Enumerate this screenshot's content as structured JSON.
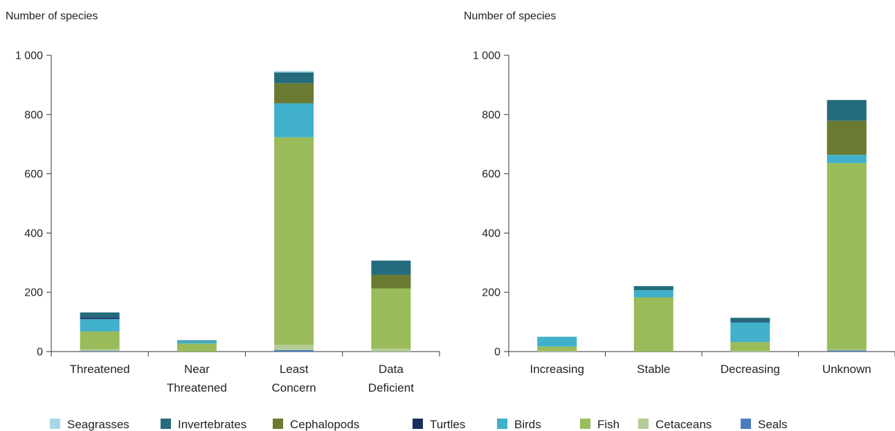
{
  "legend": [
    {
      "name": "Seagrasses",
      "color": "#a8d8e6"
    },
    {
      "name": "Invertebrates",
      "color": "#246b7d"
    },
    {
      "name": "Cephalopods",
      "color": "#6a7a30"
    },
    {
      "name": "Turtles",
      "color": "#1b2f5e"
    },
    {
      "name": "Birds",
      "color": "#41b0cb"
    },
    {
      "name": "Fish",
      "color": "#9abb59"
    },
    {
      "name": "Cetaceans",
      "color": "#b3cc98"
    },
    {
      "name": "Seals",
      "color": "#4a7cbf"
    }
  ],
  "chart_data": [
    {
      "type": "bar",
      "stacked": true,
      "title": "",
      "ylabel": "Number of species",
      "ylim": [
        0,
        1000
      ],
      "yticks": [
        "0",
        "200",
        "400",
        "600",
        "800",
        "1 000"
      ],
      "categories": [
        [
          "Threatened"
        ],
        [
          "Near",
          "Threatened"
        ],
        [
          "Least",
          "Concern"
        ],
        [
          "Data",
          "Deficient"
        ]
      ],
      "series": [
        {
          "name": "Seals",
          "values": [
            2,
            0,
            5,
            0
          ]
        },
        {
          "name": "Cetaceans",
          "values": [
            6,
            0,
            18,
            10
          ]
        },
        {
          "name": "Fish",
          "values": [
            60,
            27,
            700,
            203
          ]
        },
        {
          "name": "Birds",
          "values": [
            42,
            9,
            115,
            0
          ]
        },
        {
          "name": "Turtles",
          "values": [
            5,
            0,
            0,
            0
          ]
        },
        {
          "name": "Cephalopods",
          "values": [
            0,
            0,
            68,
            46
          ]
        },
        {
          "name": "Invertebrates",
          "values": [
            17,
            2,
            36,
            48
          ]
        },
        {
          "name": "Seagrasses",
          "values": [
            0,
            0,
            5,
            0
          ]
        }
      ]
    },
    {
      "type": "bar",
      "stacked": true,
      "title": "",
      "ylabel": "Number of species",
      "ylim": [
        0,
        1000
      ],
      "yticks": [
        "0",
        "200",
        "400",
        "600",
        "800",
        "1 000"
      ],
      "categories": [
        [
          "Increasing"
        ],
        [
          "Stable"
        ],
        [
          "Decreasing"
        ],
        [
          "Unknown"
        ]
      ],
      "series": [
        {
          "name": "Seals",
          "values": [
            0,
            0,
            0,
            4
          ]
        },
        {
          "name": "Cetaceans",
          "values": [
            2,
            0,
            2,
            2
          ]
        },
        {
          "name": "Fish",
          "values": [
            15,
            183,
            30,
            630
          ]
        },
        {
          "name": "Birds",
          "values": [
            33,
            24,
            67,
            28
          ]
        },
        {
          "name": "Turtles",
          "values": [
            0,
            0,
            3,
            0
          ]
        },
        {
          "name": "Cephalopods",
          "values": [
            0,
            0,
            0,
            115
          ]
        },
        {
          "name": "Invertebrates",
          "values": [
            0,
            14,
            12,
            70
          ]
        },
        {
          "name": "Seagrasses",
          "values": [
            0,
            0,
            0,
            0
          ]
        }
      ]
    }
  ]
}
